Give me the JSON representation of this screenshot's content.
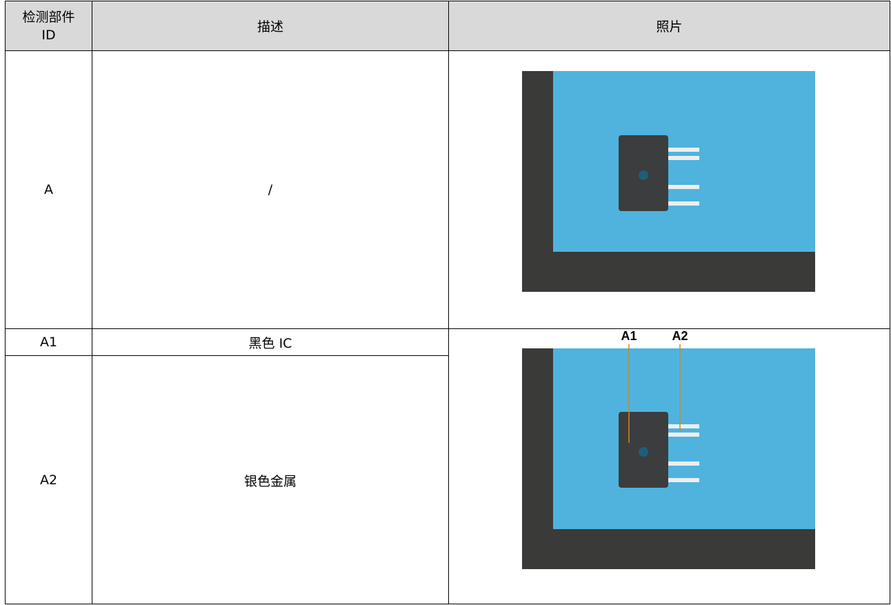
{
  "table": {
    "header": [
      "检测部件 ID",
      "描述",
      "照片"
    ],
    "rows": [
      [
        "A",
        "/"
      ],
      [
        "A1",
        "黑色 IC"
      ],
      [
        "A2",
        "银色金属"
      ]
    ],
    "photo_labels": [
      "A1",
      "A2"
    ]
  }
}
